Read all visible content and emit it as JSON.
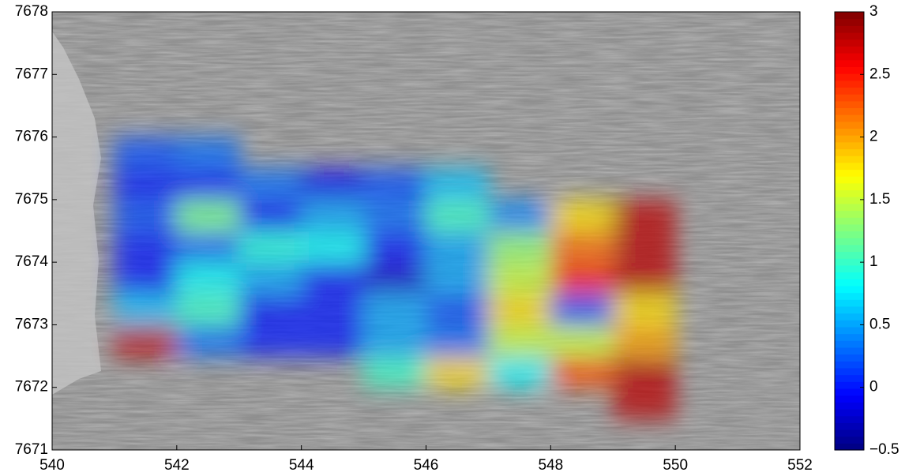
{
  "chart_data": {
    "type": "heatmap",
    "x": [
      541.5,
      542.5,
      543.5,
      544.5,
      545.5,
      546.5,
      547.5,
      548.5,
      549.5
    ],
    "y": [
      7671.75,
      7672.25,
      7672.75,
      7673.25,
      7673.75,
      7674.25,
      7674.75,
      7675.25,
      7675.75
    ],
    "z": [
      [
        null,
        null,
        null,
        null,
        null,
        null,
        null,
        null,
        2.8
      ],
      [
        null,
        null,
        null,
        null,
        1.0,
        1.8,
        0.8,
        2.3,
        2.8
      ],
      [
        2.8,
        0.3,
        0,
        0,
        0.5,
        0.3,
        1.5,
        1.5,
        2.0
      ],
      [
        0.6,
        1.0,
        0,
        0,
        0.5,
        0.2,
        1.8,
        0.2,
        1.8
      ],
      [
        0,
        0.8,
        0.5,
        0,
        -0.2,
        0.5,
        1.5,
        2.5,
        2.8
      ],
      [
        0,
        0.3,
        0.9,
        0.8,
        0,
        0.5,
        1.3,
        2.2,
        2.8
      ],
      [
        0.2,
        1.2,
        0,
        0.5,
        0.3,
        1.0,
        0.4,
        1.8,
        2.8
      ],
      [
        0,
        0,
        0.3,
        -0.1,
        0.2,
        0.6,
        null,
        null,
        null
      ],
      [
        0.2,
        0.3,
        null,
        null,
        null,
        null,
        null,
        null,
        null
      ]
    ],
    "colormap": "jet",
    "clim": [
      -0.5,
      3
    ],
    "cticks": [
      {
        "value": -0.5,
        "label": "−0.5"
      },
      0,
      0.5,
      1,
      1.5,
      2,
      2.5,
      3
    ],
    "xlim": [
      540,
      552
    ],
    "xticks": [
      540,
      542,
      544,
      546,
      548,
      550,
      552
    ],
    "ylim": [
      7671,
      7678
    ],
    "yticks": [
      7671,
      7672,
      7673,
      7674,
      7675,
      7676,
      7677,
      7678
    ]
  }
}
